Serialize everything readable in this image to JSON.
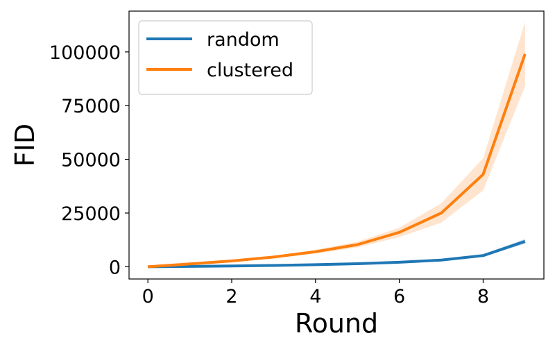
{
  "chart_data": {
    "type": "line",
    "xlabel": "Round",
    "ylabel": "FID",
    "xlim": [
      -0.45,
      9.45
    ],
    "ylim": [
      -5700,
      119000
    ],
    "xticks": [
      0,
      2,
      4,
      6,
      8
    ],
    "yticks": [
      0,
      25000,
      50000,
      75000,
      100000
    ],
    "grid": false,
    "legend": {
      "placement": "top-left"
    },
    "x": [
      0,
      1,
      2,
      3,
      4,
      5,
      6,
      7,
      8,
      9
    ],
    "series": [
      {
        "name": "random",
        "color": "#1f77b4",
        "values": [
          0,
          150,
          350,
          600,
          950,
          1400,
          2100,
          3100,
          5200,
          11800
        ],
        "lower": [
          0,
          100,
          280,
          500,
          820,
          1250,
          1900,
          2800,
          4700,
          10600
        ],
        "upper": [
          0,
          200,
          420,
          700,
          1080,
          1550,
          2300,
          3400,
          5700,
          13000
        ]
      },
      {
        "name": "clustered",
        "color": "#ff7f0e",
        "values": [
          0,
          1300,
          2700,
          4500,
          7000,
          10300,
          16000,
          25000,
          43000,
          99000
        ],
        "lower": [
          0,
          1000,
          2300,
          3900,
          6100,
          9000,
          13800,
          20500,
          35500,
          84000
        ],
        "upper": [
          0,
          1600,
          3100,
          5100,
          7900,
          11600,
          18200,
          29500,
          50500,
          114000
        ]
      }
    ]
  }
}
